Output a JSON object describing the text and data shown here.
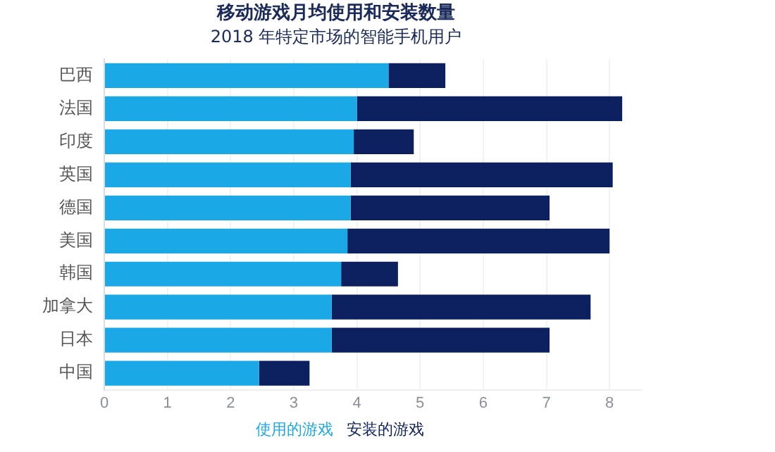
{
  "chart_data": {
    "type": "bar",
    "orientation": "horizontal",
    "stacked": true,
    "title": "移动游戏月均使用和安装数量",
    "subtitle": "2018 年特定市场的智能手机用户",
    "categories": [
      "巴西",
      "法国",
      "印度",
      "英国",
      "德国",
      "美国",
      "韩国",
      "加拿大",
      "日本",
      "中国"
    ],
    "series": [
      {
        "name": "使用的游戏",
        "color": "#1ba8e6",
        "values": [
          4.5,
          4.0,
          3.95,
          3.9,
          3.9,
          3.85,
          3.75,
          3.6,
          3.6,
          2.45
        ]
      },
      {
        "name": "安装的游戏",
        "color": "#0c1f5e",
        "values": [
          0.9,
          4.2,
          0.95,
          4.15,
          3.15,
          4.15,
          0.9,
          4.1,
          3.45,
          0.8
        ]
      }
    ],
    "xlim": [
      0,
      8.5
    ],
    "xticks": [
      0,
      1,
      2,
      3,
      4,
      5,
      6,
      7,
      8
    ],
    "grid": "x",
    "legend": "bottom"
  }
}
